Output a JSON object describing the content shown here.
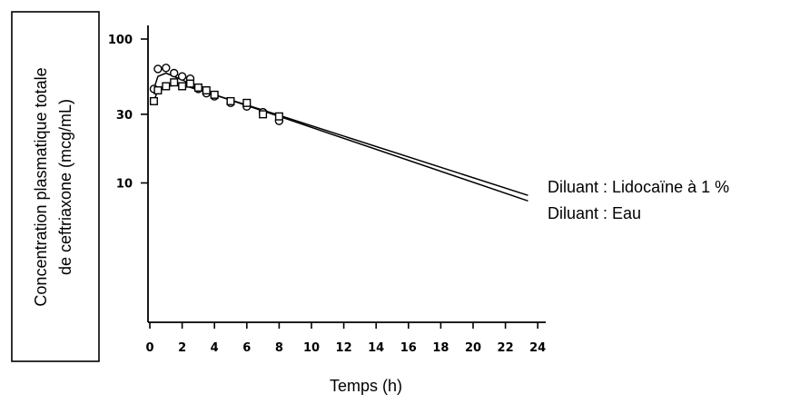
{
  "chart_data": {
    "type": "line",
    "y_scale": "log",
    "ylabel_lines": [
      "Concentration plasmatique totale",
      "de ceftriaxone (mcg/mL)"
    ],
    "xlabel": "Temps (h)",
    "xlim": [
      0,
      24
    ],
    "ylim": [
      3,
      100
    ],
    "x_ticks": [
      "0",
      "2",
      "4",
      "6",
      "8",
      "10",
      "12",
      "14",
      "16",
      "18",
      "20",
      "22",
      "24"
    ],
    "y_ticks": [
      {
        "value": 100,
        "label": "100"
      },
      {
        "value": 30,
        "label": "30"
      },
      {
        "value": 10,
        "label": "10"
      }
    ],
    "grid": false,
    "legend_placement": "right",
    "series": [
      {
        "name": "Diluant : Lidocaïne à 1 %",
        "marker": "circle",
        "points": [
          [
            0.25,
            45
          ],
          [
            0.5,
            62
          ],
          [
            1,
            63
          ],
          [
            1.5,
            58
          ],
          [
            2,
            55
          ],
          [
            2.5,
            53
          ],
          [
            3,
            45
          ],
          [
            3.5,
            42
          ],
          [
            4,
            40
          ],
          [
            5,
            36
          ],
          [
            6,
            34
          ],
          [
            7,
            31
          ],
          [
            8,
            27
          ]
        ],
        "line": [
          [
            0.25,
            45
          ],
          [
            0.5,
            55
          ],
          [
            1,
            58
          ],
          [
            2,
            52
          ],
          [
            4,
            41
          ],
          [
            8,
            29.5
          ],
          [
            23.4,
            8.2
          ]
        ]
      },
      {
        "name": "Diluant : Eau",
        "marker": "square",
        "points": [
          [
            0.25,
            37
          ],
          [
            0.5,
            44
          ],
          [
            1,
            47
          ],
          [
            1.5,
            50
          ],
          [
            2,
            47
          ],
          [
            2.5,
            49
          ],
          [
            3,
            46
          ],
          [
            3.5,
            44
          ],
          [
            4,
            41
          ],
          [
            5,
            37
          ],
          [
            6,
            36
          ],
          [
            7,
            30
          ],
          [
            8,
            29
          ]
        ],
        "line": [
          [
            0.25,
            37
          ],
          [
            0.5,
            44
          ],
          [
            1,
            47
          ],
          [
            2,
            48
          ],
          [
            4,
            41
          ],
          [
            8,
            29
          ],
          [
            23.4,
            7.5
          ]
        ]
      }
    ]
  }
}
